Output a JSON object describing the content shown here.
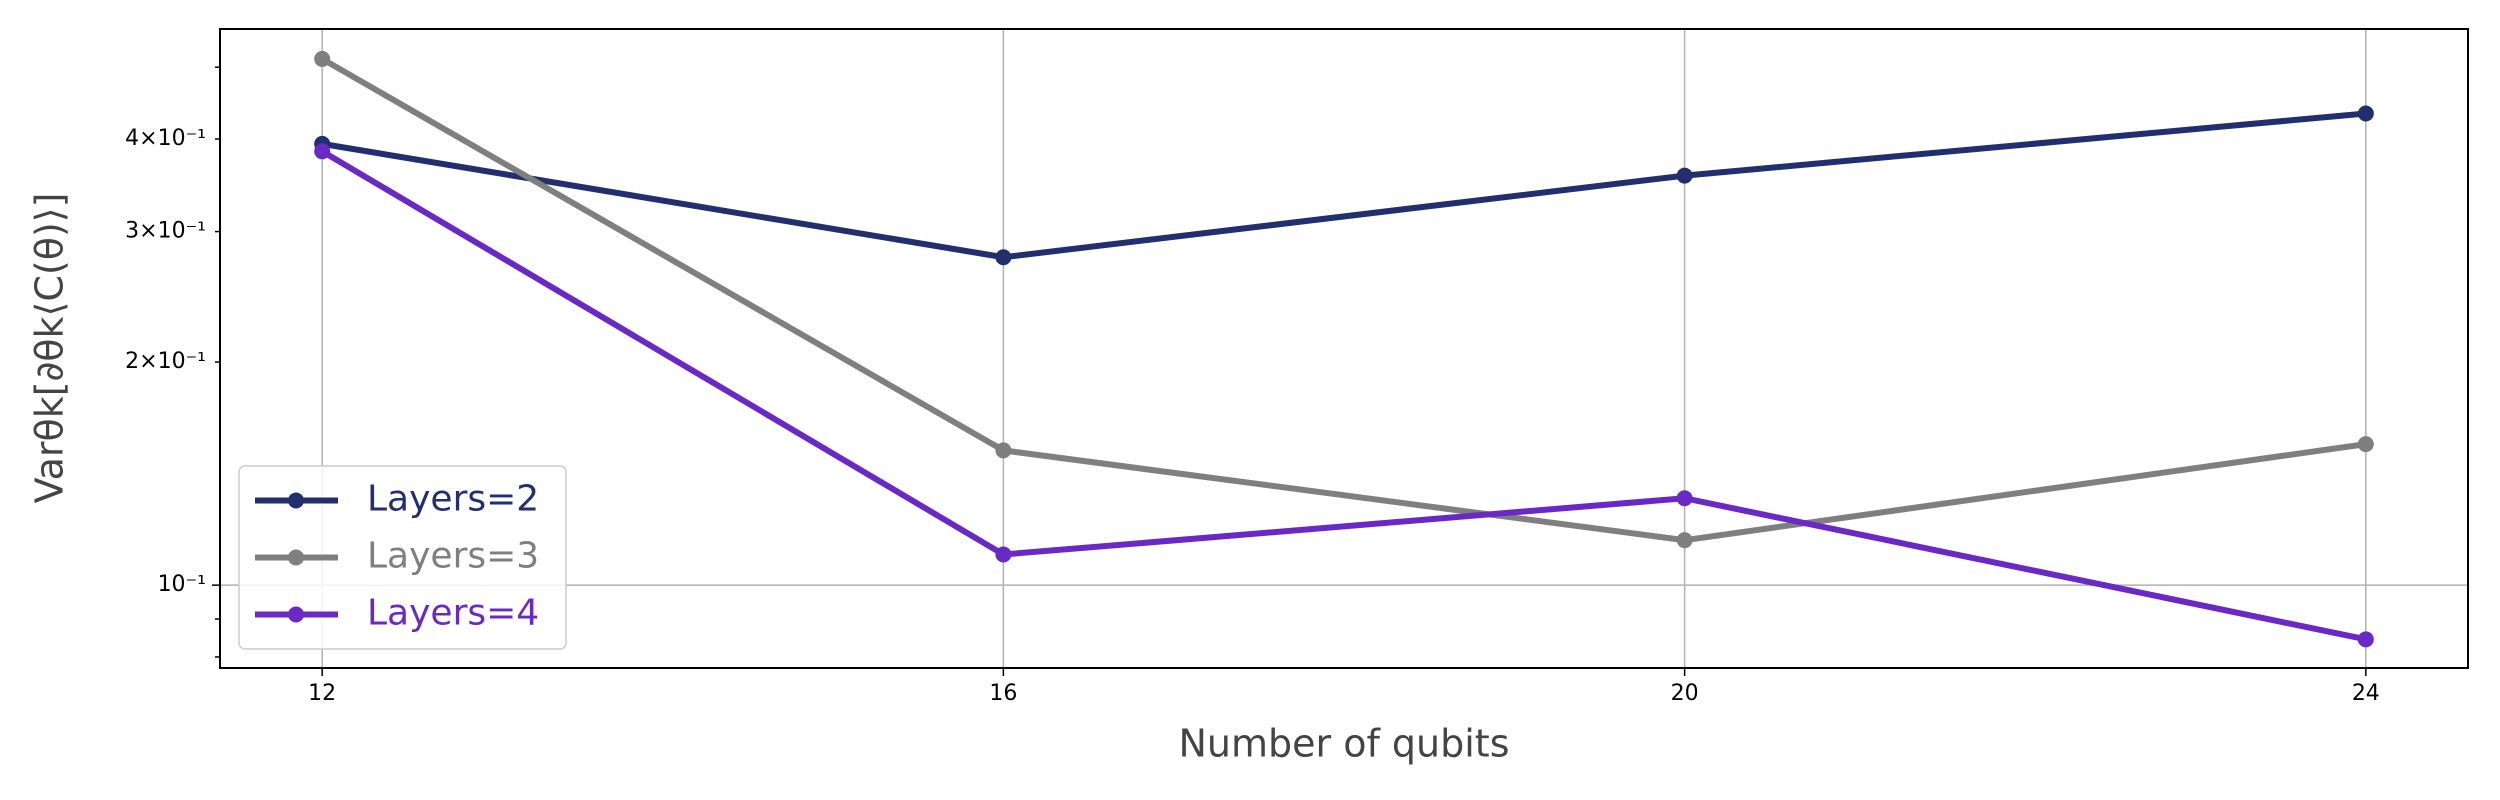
{
  "chart_data": {
    "type": "line",
    "x_label": "Number of qubits",
    "y_label": "Varθk[∂θk⟨C(θ)⟩]",
    "x": [
      12,
      16,
      20,
      24
    ],
    "series": [
      {
        "name": "Layers=2",
        "color": "#212f6e",
        "values": [
          0.394,
          0.277,
          0.357,
          0.433
        ]
      },
      {
        "name": "Layers=3",
        "color": "#7f7f7f",
        "values": [
          0.513,
          0.152,
          0.115,
          0.155
        ]
      },
      {
        "name": "Layers=4",
        "color": "#6a29c4",
        "values": [
          0.385,
          0.11,
          0.131,
          0.0845
        ]
      }
    ],
    "xlim": [
      11.4,
      24.6
    ],
    "xticks": [
      12,
      16,
      20,
      24
    ],
    "ylim": [
      0.0773,
      0.563
    ],
    "y_scale": "log",
    "yticks": [
      {
        "value": 0.1,
        "label": "10⁻¹"
      }
    ],
    "yminor_ticks": [
      {
        "value": 0.2,
        "label": "2×10⁻¹"
      },
      {
        "value": 0.3,
        "label": "3×10⁻¹"
      },
      {
        "value": 0.4,
        "label": "4×10⁻¹"
      },
      0.08,
      0.09,
      0.5
    ],
    "grid": true,
    "legend_position": "lower left"
  }
}
